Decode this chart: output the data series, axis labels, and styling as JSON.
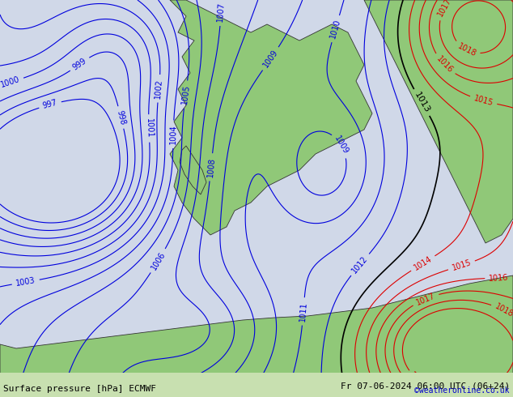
{
  "title_left": "Surface pressure [hPa] ECMWF",
  "title_right": "Fr 07-06-2024 06:00 UTC (06+24)",
  "copyright": "©weatheronline.co.uk",
  "bg_color": "#d0d8e8",
  "land_color": "#90c878",
  "contour_color_blue": "#0000dd",
  "contour_color_black": "#000000",
  "contour_color_red": "#dd0000",
  "label_fontsize": 7,
  "bottom_fontsize": 8,
  "copyright_fontsize": 7,
  "copyright_color": "#0000cc",
  "figsize": [
    6.34,
    4.9
  ],
  "dpi": 100,
  "xlim": [
    0,
    634
  ],
  "ylim": [
    0,
    490
  ],
  "bottom_bar_color": "#c8e0b0",
  "bottom_bar_height": 30
}
